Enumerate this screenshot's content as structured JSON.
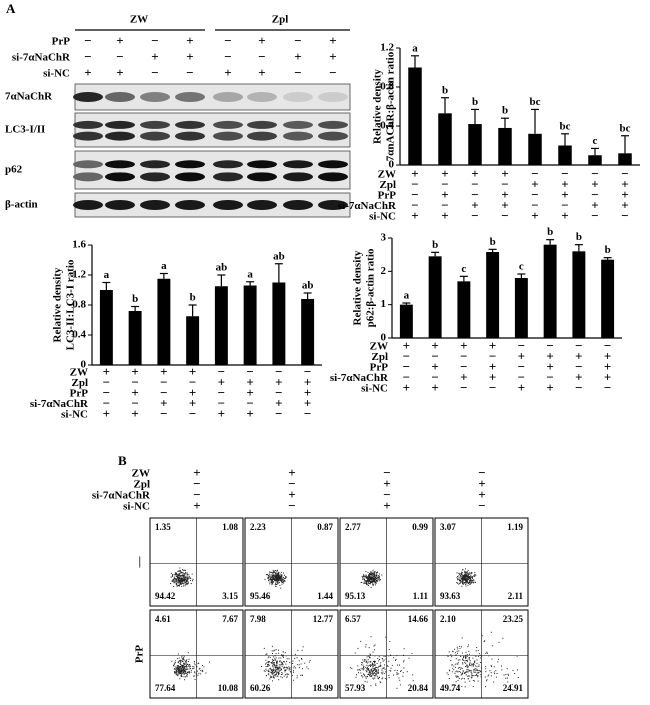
{
  "panel_labels": [
    "A",
    "B"
  ],
  "blot": {
    "groups": [
      "ZW",
      "Zpl"
    ],
    "conditions": [
      {
        "name": "PrP",
        "signs": [
          "−",
          "+",
          "−",
          "+",
          "−",
          "+",
          "−",
          "+"
        ]
      },
      {
        "name": "si-7αNaChR",
        "signs": [
          "−",
          "−",
          "+",
          "+",
          "−",
          "−",
          "+",
          "+"
        ]
      },
      {
        "name": "si-NC",
        "signs": [
          "+",
          "+",
          "−",
          "−",
          "+",
          "+",
          "−",
          "−"
        ]
      }
    ],
    "rows": [
      "7αNaChR",
      "LC3-I/II",
      "p62",
      "β-actin"
    ]
  },
  "chart_data": [
    {
      "type": "bar",
      "ylabel": [
        "Relative density",
        "7αnAChR:β-actin ratio"
      ],
      "color": "#000000",
      "values": [
        1.0,
        0.53,
        0.42,
        0.38,
        0.32,
        0.2,
        0.1,
        0.12
      ],
      "errors": [
        0.12,
        0.16,
        0.15,
        0.1,
        0.25,
        0.12,
        0.07,
        0.18
      ],
      "letters": [
        "a",
        "b",
        "b",
        "b",
        "bc",
        "bc",
        "c",
        "bc"
      ],
      "ylim": [
        0,
        1.2
      ],
      "yticks": [
        0,
        0.4,
        0.8,
        1.2
      ],
      "conditions": [
        {
          "name": "ZW",
          "signs": [
            "+",
            "+",
            "+",
            "+",
            "−",
            "−",
            "−",
            "−"
          ]
        },
        {
          "name": "Zpl",
          "signs": [
            "−",
            "−",
            "−",
            "−",
            "+",
            "+",
            "+",
            "+"
          ]
        },
        {
          "name": "PrP",
          "signs": [
            "−",
            "+",
            "−",
            "+",
            "−",
            "+",
            "−",
            "+"
          ]
        },
        {
          "name": "si-7αNaChR",
          "signs": [
            "−",
            "−",
            "+",
            "+",
            "−",
            "−",
            "+",
            "+"
          ]
        },
        {
          "name": "si-NC",
          "signs": [
            "+",
            "+",
            "−",
            "−",
            "+",
            "+",
            "−",
            "−"
          ]
        }
      ]
    },
    {
      "type": "bar",
      "ylabel": [
        "Relative density",
        "LC3-II:LC3-I ratio"
      ],
      "color": "#000000",
      "values": [
        1.0,
        0.72,
        1.15,
        0.65,
        1.05,
        1.06,
        1.1,
        0.88
      ],
      "errors": [
        0.1,
        0.06,
        0.07,
        0.15,
        0.15,
        0.05,
        0.25,
        0.08
      ],
      "letters": [
        "a",
        "b",
        "a",
        "b",
        "ab",
        "a",
        "ab",
        "ab"
      ],
      "ylim": [
        0,
        1.6
      ],
      "yticks": [
        0,
        0.4,
        0.8,
        1.2,
        1.6
      ],
      "conditions": [
        {
          "name": "ZW",
          "signs": [
            "+",
            "+",
            "+",
            "+",
            "−",
            "−",
            "−",
            "−"
          ]
        },
        {
          "name": "Zpl",
          "signs": [
            "−",
            "−",
            "−",
            "−",
            "+",
            "+",
            "+",
            "+"
          ]
        },
        {
          "name": "PrP",
          "signs": [
            "−",
            "+",
            "−",
            "+",
            "−",
            "+",
            "−",
            "+"
          ]
        },
        {
          "name": "si-7αNaChR",
          "signs": [
            "−",
            "−",
            "+",
            "+",
            "−",
            "−",
            "+",
            "+"
          ]
        },
        {
          "name": "si-NC",
          "signs": [
            "+",
            "+",
            "−",
            "−",
            "+",
            "+",
            "−",
            "−"
          ]
        }
      ]
    },
    {
      "type": "bar",
      "ylabel": [
        "Relative density",
        "p62:β-actin ratio"
      ],
      "color": "#000000",
      "values": [
        1.0,
        2.45,
        1.7,
        2.58,
        1.8,
        2.8,
        2.6,
        2.35
      ],
      "errors": [
        0.05,
        0.12,
        0.15,
        0.08,
        0.12,
        0.15,
        0.2,
        0.06
      ],
      "letters": [
        "a",
        "b",
        "c",
        "b",
        "c",
        "b",
        "b",
        "b"
      ],
      "ylim": [
        0,
        3
      ],
      "yticks": [
        0,
        1,
        2,
        3
      ],
      "conditions": [
        {
          "name": "ZW",
          "signs": [
            "+",
            "+",
            "+",
            "+",
            "−",
            "−",
            "−",
            "−"
          ]
        },
        {
          "name": "Zpl",
          "signs": [
            "−",
            "−",
            "−",
            "−",
            "+",
            "+",
            "+",
            "+"
          ]
        },
        {
          "name": "PrP",
          "signs": [
            "−",
            "+",
            "−",
            "+",
            "−",
            "+",
            "−",
            "+"
          ]
        },
        {
          "name": "si-7αNaChR",
          "signs": [
            "−",
            "−",
            "+",
            "+",
            "−",
            "−",
            "+",
            "+"
          ]
        },
        {
          "name": "si-NC",
          "signs": [
            "+",
            "+",
            "−",
            "−",
            "+",
            "+",
            "−",
            "−"
          ]
        }
      ]
    }
  ],
  "flow": {
    "conditions": [
      {
        "name": "ZW",
        "signs": [
          "+",
          "+",
          "−",
          "−"
        ]
      },
      {
        "name": "Zpl",
        "signs": [
          "−",
          "−",
          "+",
          "+"
        ]
      },
      {
        "name": "si-7αNaChR",
        "signs": [
          "−",
          "+",
          "−",
          "+"
        ]
      },
      {
        "name": "si-NC",
        "signs": [
          "+",
          "−",
          "+",
          "−"
        ]
      }
    ],
    "row_labels": [
      "—",
      "PrP"
    ],
    "plots": [
      [
        [
          "1.35",
          "1.08",
          "94.42",
          "3.15"
        ],
        [
          "2.23",
          "0.87",
          "95.46",
          "1.44"
        ],
        [
          "2.77",
          "0.99",
          "95.13",
          "1.11"
        ],
        [
          "3.07",
          "1.19",
          "93.63",
          "2.11"
        ]
      ],
      [
        [
          "4.61",
          "7.67",
          "77.64",
          "10.08"
        ],
        [
          "7.98",
          "12.77",
          "60.26",
          "18.99"
        ],
        [
          "6.57",
          "14.66",
          "57.93",
          "20.84"
        ],
        [
          "2.10",
          "23.25",
          "49.74",
          "24.91"
        ]
      ]
    ]
  }
}
